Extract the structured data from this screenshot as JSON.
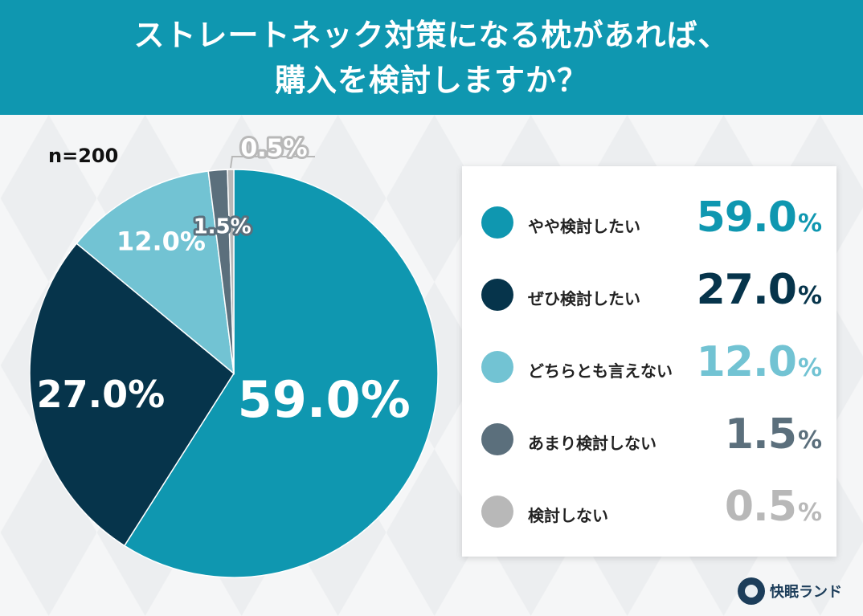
{
  "header": {
    "title_line1": "ストレートネック対策になる枕があれば、",
    "title_line2": "購入を検討しますか？"
  },
  "sample_label": "n=200",
  "brand": {
    "name": "快眠ランド",
    "logo_icon": "sleep-land-logo-icon"
  },
  "colors": {
    "header_bg": "#0f97b0",
    "series": [
      "#0f97b0",
      "#06344b",
      "#72c3d3",
      "#5b6f7c",
      "#b8b8b8"
    ]
  },
  "chart_data": {
    "type": "pie",
    "title": "ストレートネック対策になる枕があれば、購入を検討しますか？",
    "categories": [
      "やや検討したい",
      "ぜひ検討したい",
      "どちらとも言えない",
      "あまり検討しない",
      "検討しない"
    ],
    "values": [
      59.0,
      27.0,
      12.0,
      1.5,
      0.5
    ],
    "labels": [
      "59.0%",
      "27.0%",
      "12.0%",
      "1.5%",
      "0.5%"
    ],
    "legend_placement": "right"
  },
  "legend": [
    {
      "label": "やや検討したい",
      "value": "59.0",
      "unit": "%"
    },
    {
      "label": "ぜひ検討したい",
      "value": "27.0",
      "unit": "%"
    },
    {
      "label": "どちらとも言えない",
      "value": "12.0",
      "unit": "%"
    },
    {
      "label": "あまり検討しない",
      "value": "1.5",
      "unit": "%"
    },
    {
      "label": "検討しない",
      "value": "0.5",
      "unit": "%"
    }
  ]
}
